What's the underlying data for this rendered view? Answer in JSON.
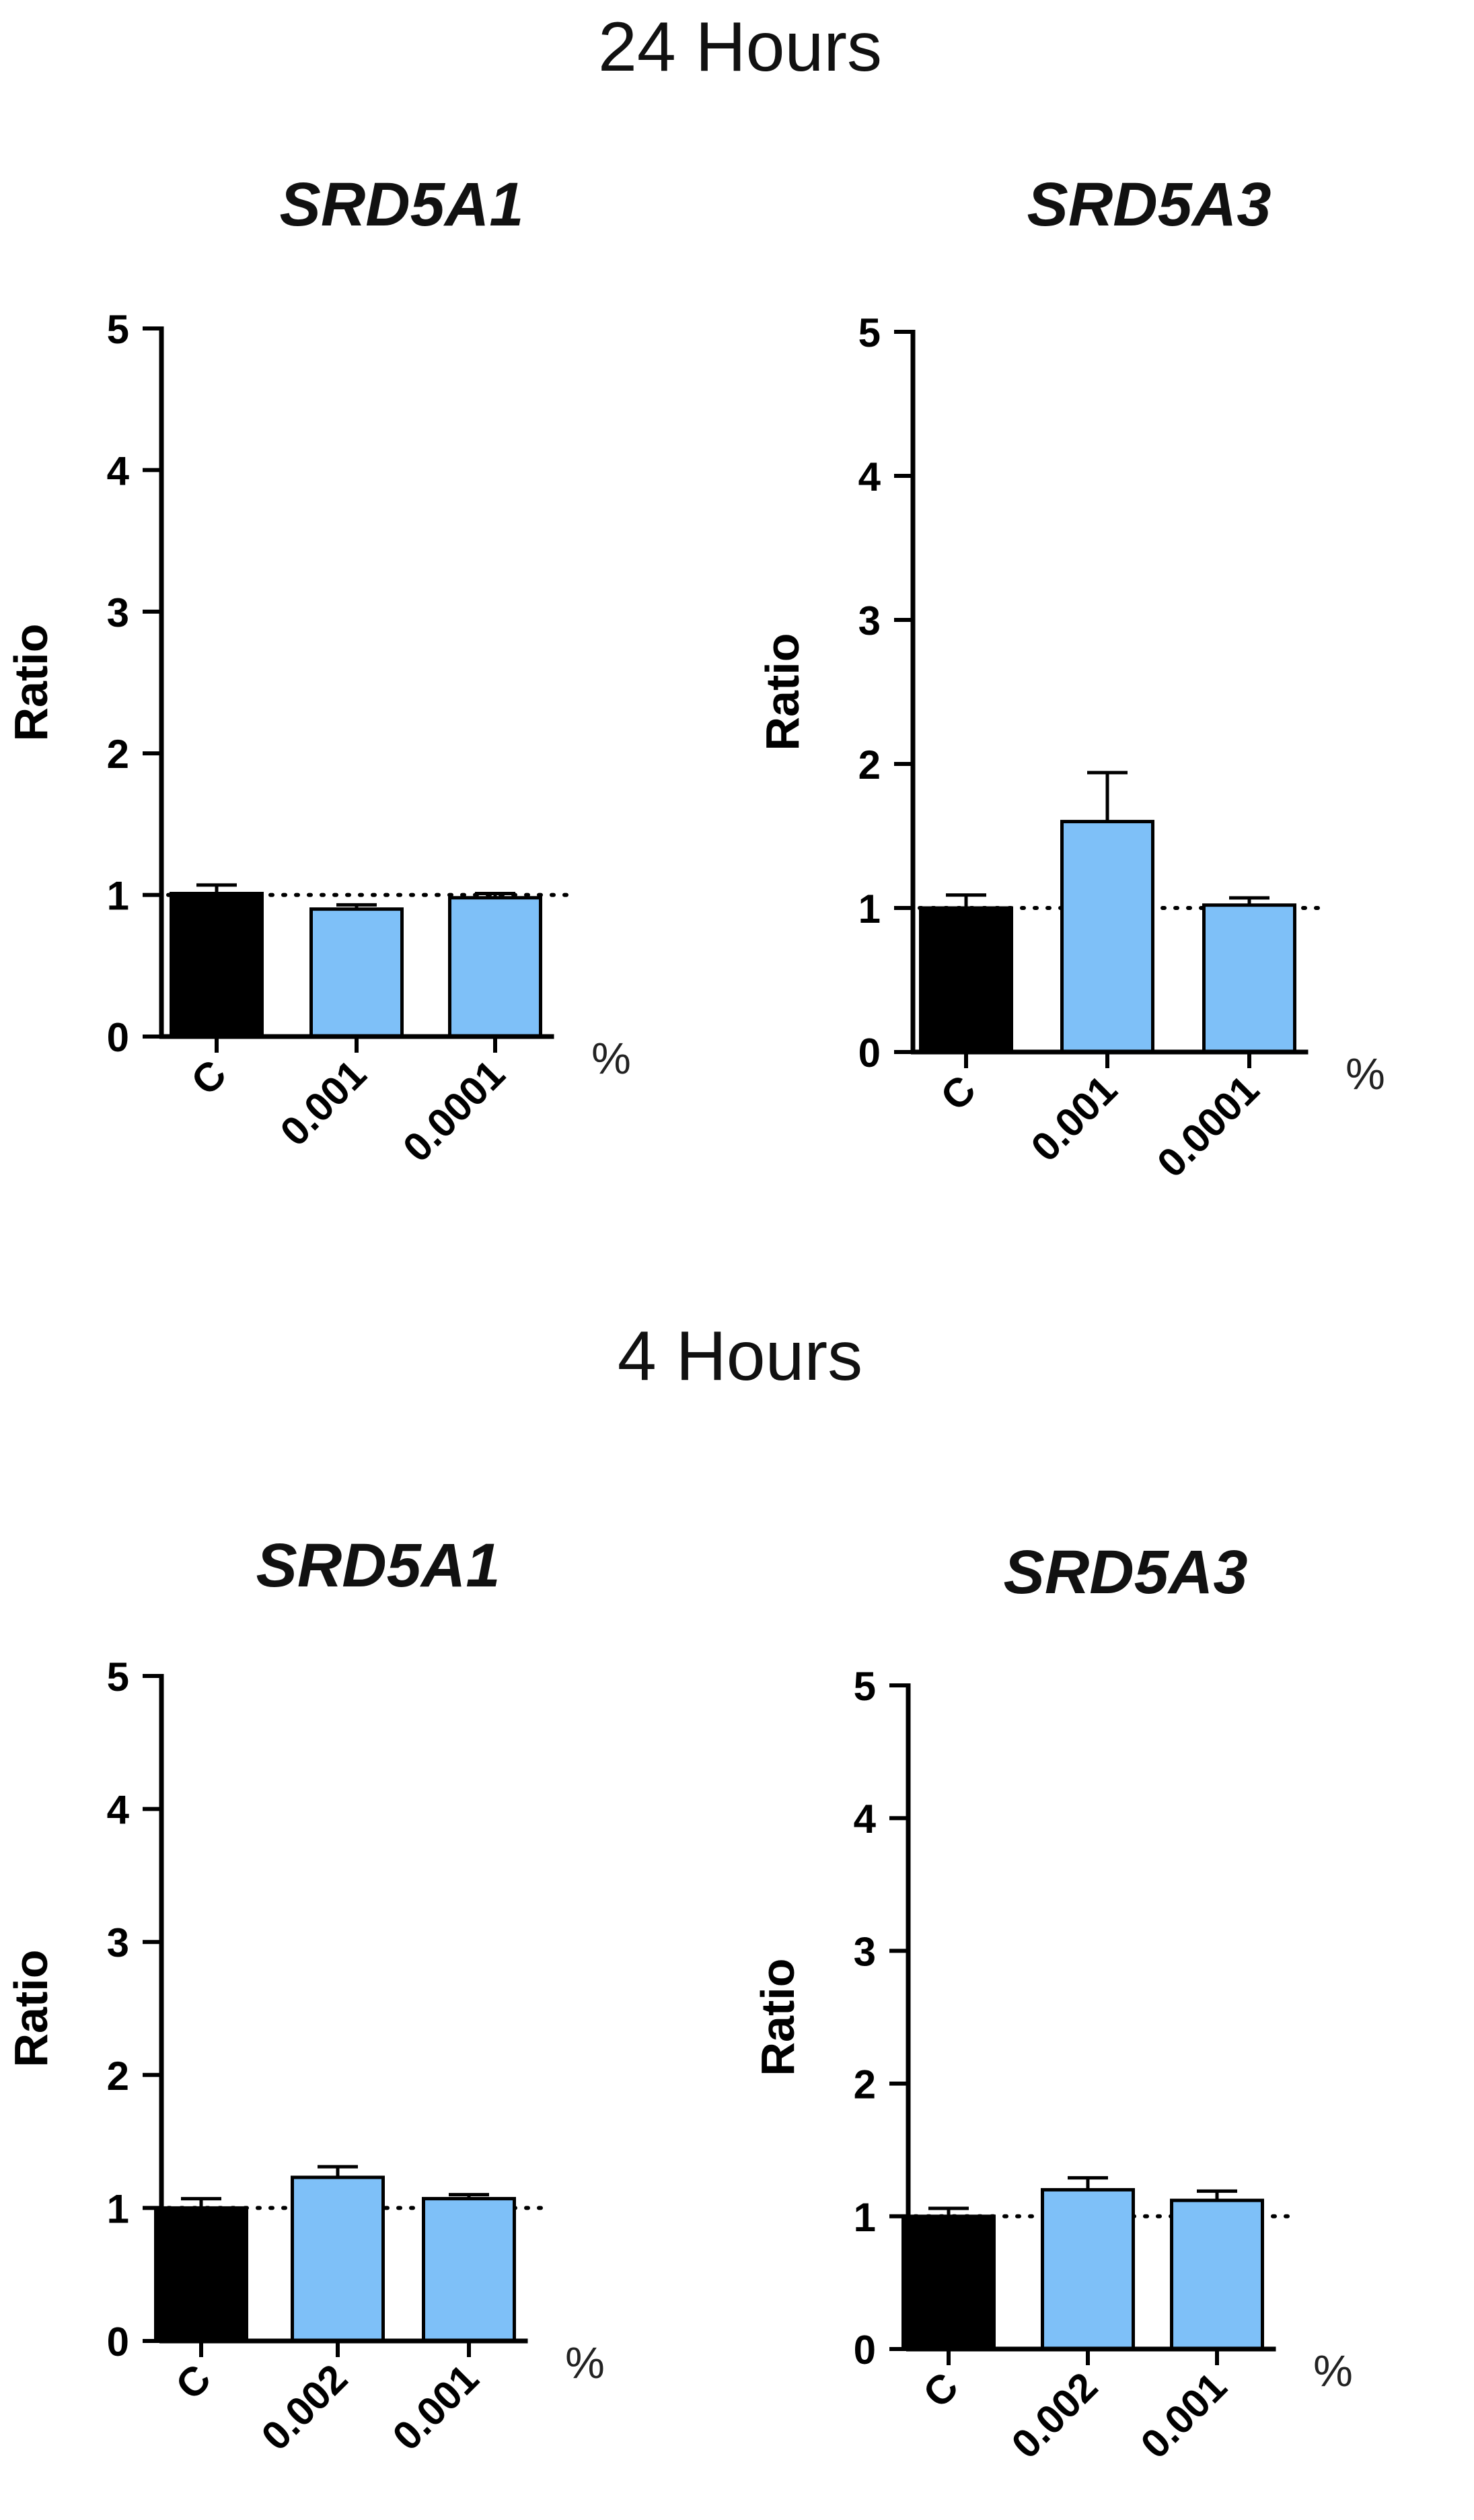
{
  "colors": {
    "control": "#000000",
    "treated": "#7ec0f8",
    "text": "#111111"
  },
  "section_titles": [
    "24 Hours",
    "4 Hours"
  ],
  "chart_data": [
    {
      "type": "bar",
      "section": "24 Hours",
      "title": "SRD5A1",
      "ylabel": "Ratio",
      "xlabel": "",
      "unit_label": "%",
      "categories": [
        "C",
        "0.001",
        "0.0001"
      ],
      "values": [
        1.01,
        0.9,
        0.98
      ],
      "errors": [
        0.06,
        0.03,
        0.03
      ],
      "ylim": [
        0,
        5
      ],
      "yticks": [
        "0",
        "1",
        "2",
        "3",
        "4",
        "5"
      ],
      "reference_line": 1,
      "bar_colors": [
        "control",
        "treated",
        "treated"
      ]
    },
    {
      "type": "bar",
      "section": "24 Hours",
      "title": "SRD5A3",
      "ylabel": "Ratio",
      "xlabel": "",
      "unit_label": "%",
      "categories": [
        "C",
        "0.001",
        "0.0001"
      ],
      "values": [
        1.0,
        1.6,
        1.02
      ],
      "errors": [
        0.09,
        0.34,
        0.05
      ],
      "ylim": [
        0,
        5
      ],
      "yticks": [
        "0",
        "1",
        "2",
        "3",
        "4",
        "5"
      ],
      "reference_line": 1,
      "bar_colors": [
        "control",
        "treated",
        "treated"
      ]
    },
    {
      "type": "bar",
      "section": "4 Hours",
      "title": "SRD5A1",
      "ylabel": "Ratio",
      "xlabel": "",
      "unit_label": "%",
      "categories": [
        "C",
        "0.002",
        "0.001"
      ],
      "values": [
        1.0,
        1.23,
        1.07
      ],
      "errors": [
        0.07,
        0.08,
        0.03
      ],
      "ylim": [
        0,
        5
      ],
      "yticks": [
        "0",
        "1",
        "2",
        "3",
        "4",
        "5"
      ],
      "reference_line": 1,
      "bar_colors": [
        "control",
        "treated",
        "treated"
      ]
    },
    {
      "type": "bar",
      "section": "4 Hours",
      "title": "SRD5A3",
      "ylabel": "Ratio",
      "xlabel": "",
      "unit_label": "%",
      "categories": [
        "C",
        "0.002",
        "0.001"
      ],
      "values": [
        1.0,
        1.2,
        1.12
      ],
      "errors": [
        0.06,
        0.09,
        0.07
      ],
      "ylim": [
        0,
        5
      ],
      "yticks": [
        "0",
        "1",
        "2",
        "3",
        "4",
        "5"
      ],
      "reference_line": 1,
      "bar_colors": [
        "control",
        "treated",
        "treated"
      ]
    }
  ]
}
